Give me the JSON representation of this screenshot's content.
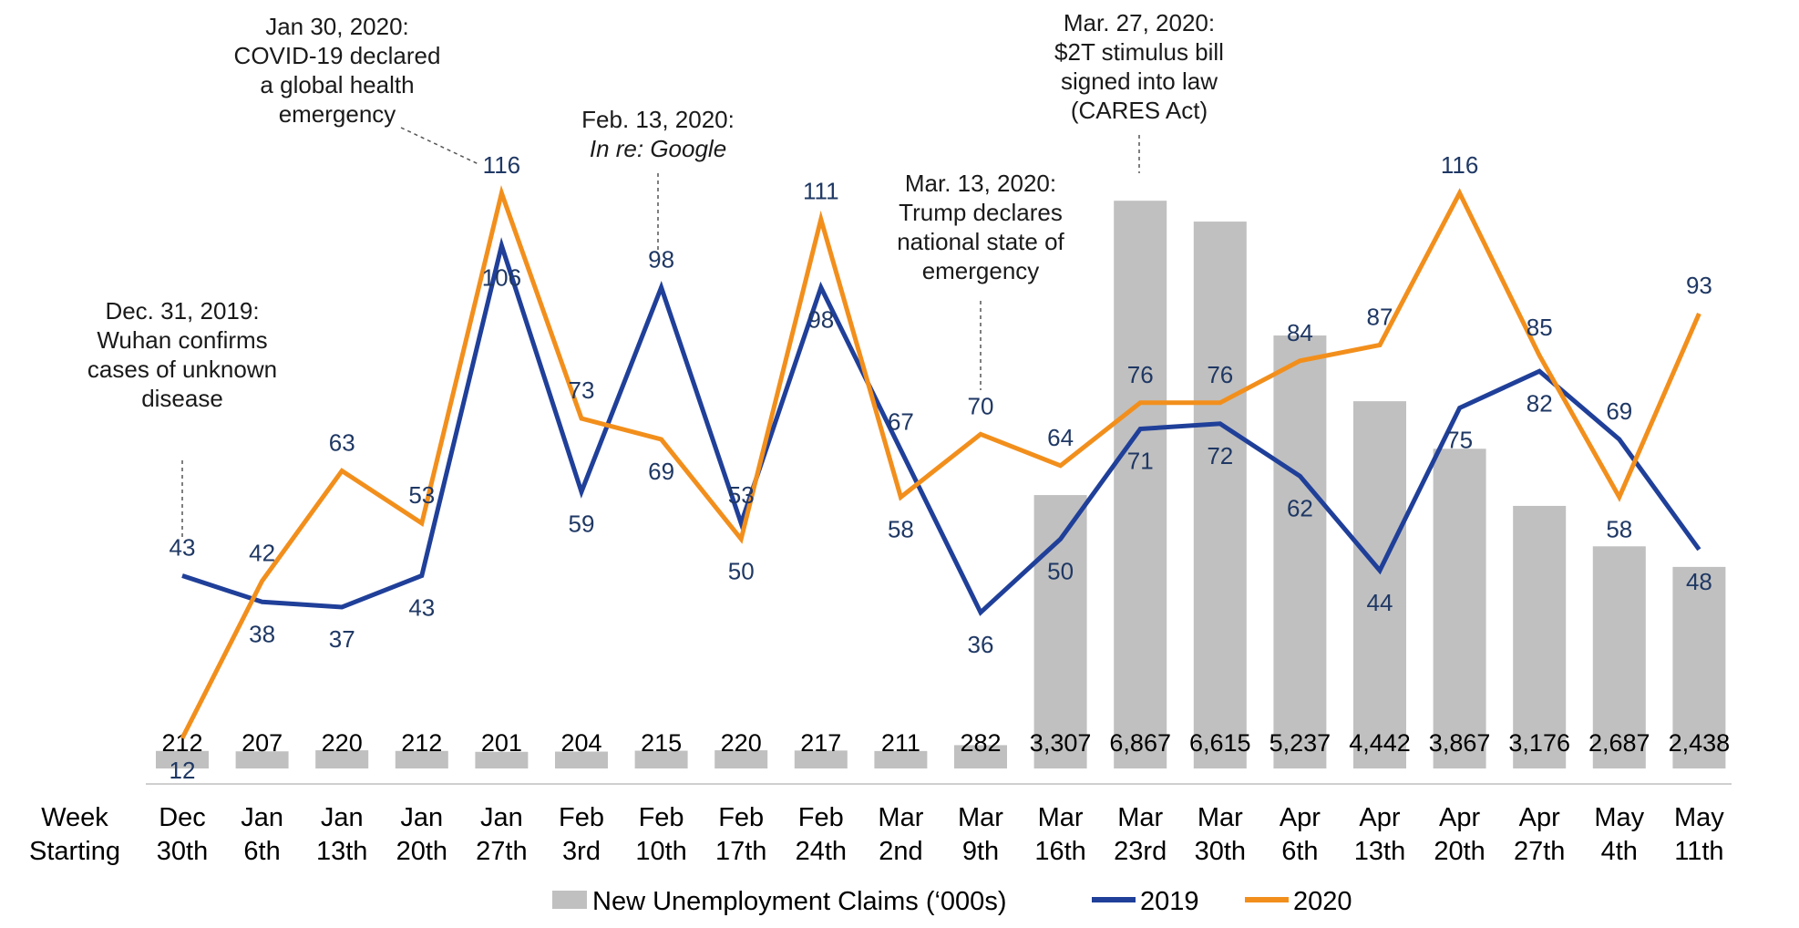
{
  "chart_data": {
    "type": "bar+line",
    "title": "",
    "xlabel": [
      "Week",
      "Starting"
    ],
    "categories": [
      [
        "Dec",
        "30th"
      ],
      [
        "Jan",
        "6th"
      ],
      [
        "Jan",
        "13th"
      ],
      [
        "Jan",
        "20th"
      ],
      [
        "Jan",
        "27th"
      ],
      [
        "Feb",
        "3rd"
      ],
      [
        "Feb",
        "10th"
      ],
      [
        "Feb",
        "17th"
      ],
      [
        "Feb",
        "24th"
      ],
      [
        "Mar",
        "2nd"
      ],
      [
        "Mar",
        "9th"
      ],
      [
        "Mar",
        "16th"
      ],
      [
        "Mar",
        "23rd"
      ],
      [
        "Mar",
        "30th"
      ],
      [
        "Apr",
        "6th"
      ],
      [
        "Apr",
        "13th"
      ],
      [
        "Apr",
        "20th"
      ],
      [
        "Apr",
        "27th"
      ],
      [
        "May",
        "4th"
      ],
      [
        "May",
        "11th"
      ]
    ],
    "bars": {
      "name": "New Unemployment Claims (‘000s)",
      "color": "#c0c0c0",
      "values": [
        212,
        207,
        220,
        212,
        201,
        204,
        215,
        220,
        217,
        211,
        282,
        3307,
        6867,
        6615,
        5237,
        4442,
        3867,
        3176,
        2687,
        2438
      ],
      "labels": [
        "212",
        "207",
        "220",
        "212",
        "201",
        "204",
        "215",
        "220",
        "217",
        "211",
        "282",
        "3,307",
        "6,867",
        "6,615",
        "5,237",
        "4,442",
        "3,867",
        "3,176",
        "2,687",
        "2,438"
      ],
      "ylim": [
        0,
        7200
      ]
    },
    "series": [
      {
        "name": "2019",
        "color": "#1f3f99",
        "values": [
          43,
          38,
          37,
          43,
          106,
          59,
          98,
          53,
          98,
          67,
          36,
          50,
          71,
          72,
          62,
          44,
          75,
          82,
          69,
          48
        ]
      },
      {
        "name": "2020",
        "color": "#f28f1c",
        "values": [
          12,
          42,
          63,
          53,
          116,
          73,
          69,
          50,
          111,
          58,
          70,
          64,
          76,
          76,
          84,
          87,
          116,
          85,
          58,
          93
        ]
      }
    ],
    "line_ylim": [
      5,
      125
    ],
    "annotations": [
      {
        "index": 0,
        "lines": [
          "Dec. 31, 2019:",
          "Wuhan confirms",
          "cases of unknown",
          "disease"
        ],
        "italic": false
      },
      {
        "index": 4,
        "lines": [
          "Jan 30, 2020:",
          "COVID-19 declared",
          "a global health",
          "emergency"
        ],
        "italic": false
      },
      {
        "index": 6,
        "lines": [
          "Feb. 13, 2020:",
          "In re: Google"
        ],
        "italic_line": 1
      },
      {
        "index": 10,
        "lines": [
          "Mar. 13, 2020:",
          "Trump declares",
          "national state of",
          "emergency"
        ],
        "italic": false
      },
      {
        "index": 12,
        "lines": [
          "Mar. 27, 2020:",
          "$2T stimulus bill",
          "signed into law",
          "(CARES Act)"
        ],
        "italic": false
      }
    ],
    "legend_position": "bottom",
    "grid": false
  }
}
